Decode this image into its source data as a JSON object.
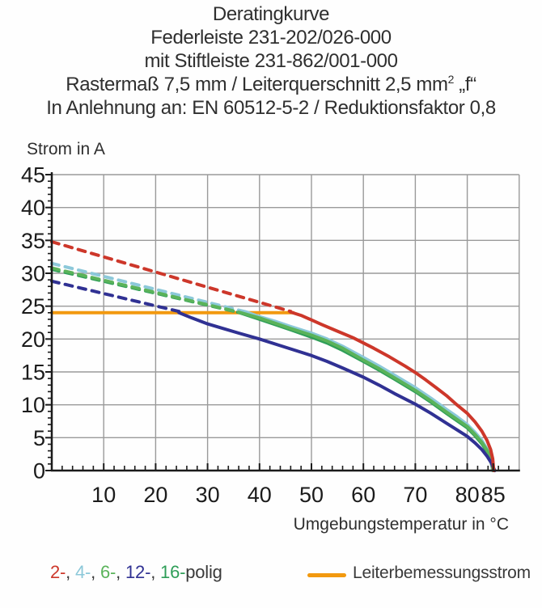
{
  "title": {
    "line1": "Deratingkurve",
    "line2": "Federleiste 231-202/026-000",
    "line3": "mit Stiftleiste 231-862/001-000",
    "line4_main": "Rastermaß 7,5 mm / Leiterquerschnitt 2,5 mm",
    "line4_sup": "2",
    "line4_suffix": " „f“",
    "line5": "In Anlehnung an: EN 60512-5-2 / Reduktionsfaktor 0,8"
  },
  "legend": {
    "poles": [
      {
        "label": "2-",
        "color": "#cd372a"
      },
      {
        "label": "4-",
        "color": "#8cc8d9"
      },
      {
        "label": "6-",
        "color": "#5ab35a"
      },
      {
        "label": "12-",
        "color": "#303193"
      },
      {
        "label": "16-",
        "color": "#2f9e58"
      }
    ],
    "separator": ", ",
    "poles_suffix": "polig",
    "rated_current_label": "Leiterbemessungsstrom",
    "rated_current_color": "#f2990f"
  },
  "chart_data": {
    "type": "line",
    "title": "Deratingkurve",
    "xlabel": "Umgebungstemperatur in °C",
    "ylabel": "Strom in A",
    "xlim": [
      0,
      90
    ],
    "ylim": [
      0,
      45
    ],
    "x_ticks": [
      10,
      20,
      30,
      40,
      50,
      60,
      70,
      80,
      85
    ],
    "y_ticks": [
      0,
      5,
      10,
      15,
      20,
      25,
      30,
      35,
      40,
      45
    ],
    "x_minor_step": 2,
    "y_minor_step": 1,
    "grid_x_step": 10,
    "grid_y_step": 5,
    "grid_on": true,
    "grid_color": "#9a9a9a",
    "axis_color": "#1b1b1b",
    "legend_position": "bottom",
    "series": [
      {
        "name": "Leiterbemessungsstrom",
        "color": "#f2990f",
        "style": "solid",
        "dashed_points": [],
        "solid_points": [
          [
            0,
            24
          ],
          [
            46.5,
            24
          ]
        ]
      },
      {
        "name": "16-polig",
        "color": "#2f9e58",
        "style": "dashed-then-solid",
        "dashed_points": [
          [
            0,
            30.6
          ],
          [
            35.8,
            24.1
          ]
        ],
        "solid_points": [
          [
            35.8,
            24.1
          ],
          [
            40,
            23.0
          ],
          [
            43,
            22.2
          ],
          [
            46,
            21.4
          ],
          [
            50,
            20.3
          ],
          [
            53,
            19.4
          ],
          [
            56,
            18.3
          ],
          [
            60,
            16.6
          ],
          [
            63,
            15.3
          ],
          [
            66,
            13.9
          ],
          [
            70,
            12.0
          ],
          [
            73,
            10.4
          ],
          [
            76,
            8.7
          ],
          [
            78,
            7.6
          ],
          [
            80,
            6.5
          ],
          [
            81.5,
            5.3
          ],
          [
            82.8,
            4.1
          ],
          [
            83.8,
            2.9
          ],
          [
            84.5,
            1.7
          ],
          [
            84.9,
            0
          ]
        ]
      },
      {
        "name": "4-polig",
        "color": "#8cc8d9",
        "style": "dashed-then-solid",
        "dashed_points": [
          [
            0,
            31.5
          ],
          [
            37.5,
            24.1
          ]
        ],
        "solid_points": [
          [
            37.5,
            24.1
          ],
          [
            40,
            23.4
          ],
          [
            43,
            22.7
          ],
          [
            46,
            21.9
          ],
          [
            50,
            20.9
          ],
          [
            53,
            20.0
          ],
          [
            56,
            18.9
          ],
          [
            60,
            17.2
          ],
          [
            63,
            15.9
          ],
          [
            66,
            14.5
          ],
          [
            70,
            12.6
          ],
          [
            73,
            11.0
          ],
          [
            76,
            9.3
          ],
          [
            78,
            8.2
          ],
          [
            80,
            7.0
          ],
          [
            81.5,
            5.8
          ],
          [
            82.8,
            4.6
          ],
          [
            83.8,
            3.3
          ],
          [
            84.5,
            2.0
          ],
          [
            84.9,
            0
          ]
        ]
      },
      {
        "name": "6-polig",
        "color": "#5ab35a",
        "style": "dashed-then-solid",
        "dashed_points": [
          [
            0,
            30.8
          ],
          [
            36,
            24.1
          ]
        ],
        "solid_points": [
          [
            36,
            24.1
          ],
          [
            40,
            23.2
          ],
          [
            43,
            22.4
          ],
          [
            46,
            21.6
          ],
          [
            50,
            20.6
          ],
          [
            53,
            19.7
          ],
          [
            56,
            18.6
          ],
          [
            60,
            16.8
          ],
          [
            63,
            15.5
          ],
          [
            66,
            14.1
          ],
          [
            70,
            12.2
          ],
          [
            73,
            10.6
          ],
          [
            76,
            8.9
          ],
          [
            78,
            7.8
          ],
          [
            80,
            6.7
          ],
          [
            81.5,
            5.5
          ],
          [
            82.8,
            4.3
          ],
          [
            83.8,
            3.1
          ],
          [
            84.5,
            1.9
          ],
          [
            85.0,
            0
          ]
        ]
      },
      {
        "name": "12-polig",
        "color": "#303193",
        "style": "dashed-then-solid",
        "dashed_points": [
          [
            0,
            28.8
          ],
          [
            24.5,
            24.2
          ]
        ],
        "solid_points": [
          [
            24.5,
            24.0
          ],
          [
            27,
            23.2
          ],
          [
            30,
            22.3
          ],
          [
            33,
            21.6
          ],
          [
            36,
            20.9
          ],
          [
            40,
            20.0
          ],
          [
            44,
            19.0
          ],
          [
            48,
            18.0
          ],
          [
            50,
            17.5
          ],
          [
            53,
            16.6
          ],
          [
            56,
            15.6
          ],
          [
            60,
            14.2
          ],
          [
            63,
            13.0
          ],
          [
            66,
            11.7
          ],
          [
            70,
            10.1
          ],
          [
            73,
            8.7
          ],
          [
            76,
            7.2
          ],
          [
            78,
            6.2
          ],
          [
            80,
            5.2
          ],
          [
            81.5,
            4.2
          ],
          [
            82.8,
            3.2
          ],
          [
            83.8,
            2.2
          ],
          [
            84.6,
            1.2
          ],
          [
            85.3,
            0
          ]
        ]
      },
      {
        "name": "2-polig",
        "color": "#cd372a",
        "style": "dashed-then-solid",
        "dashed_points": [
          [
            0,
            34.8
          ],
          [
            46,
            24.2
          ]
        ],
        "solid_points": [
          [
            46,
            24.1
          ],
          [
            48,
            23.6
          ],
          [
            50,
            22.9
          ],
          [
            52,
            22.2
          ],
          [
            55,
            21.2
          ],
          [
            58,
            20.2
          ],
          [
            60,
            19.4
          ],
          [
            62,
            18.6
          ],
          [
            65,
            17.3
          ],
          [
            68,
            15.9
          ],
          [
            70,
            14.9
          ],
          [
            72,
            13.8
          ],
          [
            74,
            12.6
          ],
          [
            76,
            11.4
          ],
          [
            78,
            10.0
          ],
          [
            80,
            8.7
          ],
          [
            81.5,
            7.4
          ],
          [
            82.8,
            6.0
          ],
          [
            83.8,
            4.6
          ],
          [
            84.5,
            3.2
          ],
          [
            84.9,
            1.8
          ],
          [
            85.1,
            0
          ]
        ]
      }
    ]
  }
}
